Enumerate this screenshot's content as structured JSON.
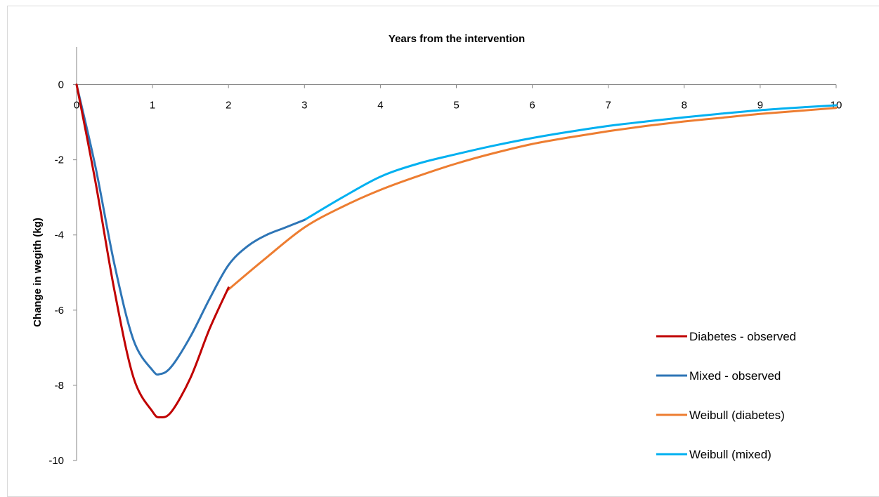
{
  "chart_data": {
    "type": "line",
    "title": "",
    "xlabel": "Years from the intervention",
    "ylabel": "Change in wegith (kg)",
    "xlim": [
      0,
      10
    ],
    "ylim": [
      -10,
      1
    ],
    "x_ticks": [
      "0",
      "1",
      "2",
      "3",
      "4",
      "5",
      "6",
      "7",
      "8",
      "9",
      "10"
    ],
    "y_ticks": [
      "0",
      "-2",
      "-4",
      "-6",
      "-8",
      "-10"
    ],
    "grid": false,
    "legend_position": "right",
    "series": [
      {
        "name": "Diabetes - observed",
        "color": "#c00000",
        "x": [
          0,
          0.25,
          0.5,
          0.75,
          1.0,
          1.1,
          1.25,
          1.5,
          1.75,
          2.0
        ],
        "y": [
          0,
          -2.6,
          -5.5,
          -7.8,
          -8.7,
          -8.85,
          -8.7,
          -7.8,
          -6.5,
          -5.4
        ]
      },
      {
        "name": "Mixed - observed",
        "color": "#2e75b6",
        "x": [
          0,
          0.25,
          0.5,
          0.75,
          1.0,
          1.1,
          1.25,
          1.5,
          1.75,
          2.0,
          2.25,
          2.5,
          2.75,
          3.0
        ],
        "y": [
          0,
          -2.2,
          -4.8,
          -6.8,
          -7.6,
          -7.7,
          -7.5,
          -6.7,
          -5.7,
          -4.8,
          -4.3,
          -4.0,
          -3.8,
          -3.6
        ]
      },
      {
        "name": "Weibull (diabetes)",
        "color": "#ed7d31",
        "x": [
          2,
          2.5,
          3,
          3.5,
          4,
          4.5,
          5,
          5.5,
          6,
          6.5,
          7,
          7.5,
          8,
          8.5,
          9,
          9.5,
          10
        ],
        "y": [
          -5.45,
          -4.6,
          -3.8,
          -3.25,
          -2.8,
          -2.43,
          -2.1,
          -1.82,
          -1.58,
          -1.4,
          -1.24,
          -1.1,
          -0.98,
          -0.88,
          -0.78,
          -0.7,
          -0.62
        ]
      },
      {
        "name": "Weibull (mixed)",
        "color": "#00b0f0",
        "x": [
          3,
          3.5,
          4,
          4.5,
          5,
          5.5,
          6,
          6.5,
          7,
          7.5,
          8,
          8.5,
          9,
          9.5,
          10
        ],
        "y": [
          -3.6,
          -3.0,
          -2.45,
          -2.1,
          -1.85,
          -1.62,
          -1.42,
          -1.25,
          -1.1,
          -0.98,
          -0.87,
          -0.77,
          -0.68,
          -0.61,
          -0.55
        ]
      }
    ]
  }
}
